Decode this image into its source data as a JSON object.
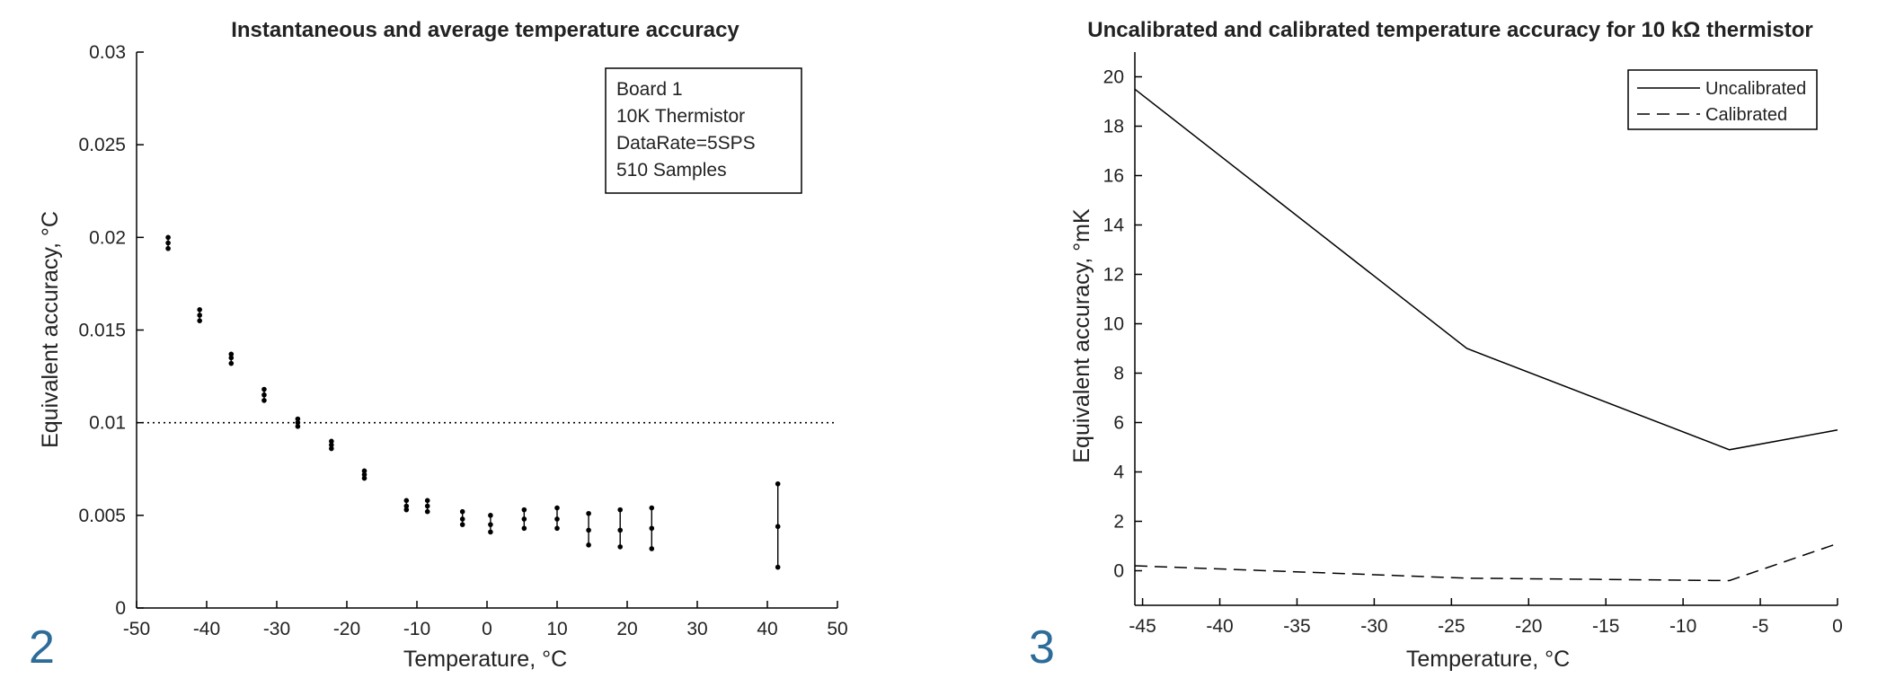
{
  "figure_numbers": [
    "2",
    "3"
  ],
  "chart_data": [
    {
      "type": "scatter",
      "title": "Instantaneous and average temperature accuracy",
      "xlabel": "Temperature, °C",
      "ylabel": "Equivalent accuracy, °C",
      "xlim": [
        -50,
        50
      ],
      "ylim": [
        0,
        0.03
      ],
      "xticks": [
        "-50",
        "-40",
        "-30",
        "-20",
        "-10",
        "0",
        "10",
        "20",
        "30",
        "40",
        "50"
      ],
      "yticks": [
        "0",
        "0.005",
        "0.01",
        "0.015",
        "0.02",
        "0.025",
        "0.03"
      ],
      "reference_line": 0.01,
      "annotation_box": [
        "Board 1",
        "10K Thermistor",
        "DataRate=5SPS",
        "510 Samples"
      ],
      "points": [
        {
          "x": -45.5,
          "low": 0.0194,
          "mid": 0.0197,
          "high": 0.02
        },
        {
          "x": -41.0,
          "low": 0.0155,
          "mid": 0.0158,
          "high": 0.0161
        },
        {
          "x": -36.5,
          "low": 0.0132,
          "mid": 0.0135,
          "high": 0.0137
        },
        {
          "x": -31.8,
          "low": 0.0112,
          "mid": 0.0115,
          "high": 0.0118
        },
        {
          "x": -27.0,
          "low": 0.0098,
          "mid": 0.01,
          "high": 0.0102
        },
        {
          "x": -22.2,
          "low": 0.0086,
          "mid": 0.0088,
          "high": 0.009
        },
        {
          "x": -17.5,
          "low": 0.007,
          "mid": 0.0072,
          "high": 0.0074
        },
        {
          "x": -11.5,
          "low": 0.0053,
          "mid": 0.0055,
          "high": 0.0058
        },
        {
          "x": -8.5,
          "low": 0.0052,
          "mid": 0.0055,
          "high": 0.0058
        },
        {
          "x": -3.5,
          "low": 0.0045,
          "mid": 0.0048,
          "high": 0.0052
        },
        {
          "x": 0.5,
          "low": 0.0041,
          "mid": 0.0045,
          "high": 0.005
        },
        {
          "x": 5.3,
          "low": 0.0043,
          "mid": 0.0048,
          "high": 0.0053
        },
        {
          "x": 10.0,
          "low": 0.0043,
          "mid": 0.0048,
          "high": 0.0054
        },
        {
          "x": 14.5,
          "low": 0.0034,
          "mid": 0.0042,
          "high": 0.0051
        },
        {
          "x": 19.0,
          "low": 0.0033,
          "mid": 0.0042,
          "high": 0.0053
        },
        {
          "x": 23.5,
          "low": 0.0032,
          "mid": 0.0043,
          "high": 0.0054
        },
        {
          "x": 41.5,
          "low": 0.0022,
          "mid": 0.0044,
          "high": 0.0067
        }
      ]
    },
    {
      "type": "line",
      "title": "Uncalibrated and calibrated temperature accuracy for 10 kΩ thermistor",
      "xlabel": "Temperature, °C",
      "ylabel": "Equivalent accuracy, °mK",
      "xlim": [
        -45.5,
        0
      ],
      "ylim": [
        -1.4,
        21
      ],
      "xticks": [
        "-45",
        "-40",
        "-35",
        "-30",
        "-25",
        "-20",
        "-15",
        "-10",
        "-5",
        "0"
      ],
      "yticks": [
        "0",
        "2",
        "4",
        "6",
        "8",
        "10",
        "12",
        "14",
        "16",
        "18",
        "20"
      ],
      "legend_position": "top-right",
      "series": [
        {
          "name": "Uncalibrated",
          "style": "solid",
          "x": [
            -45.5,
            -24.0,
            -7.0,
            0.0
          ],
          "y": [
            19.5,
            9.0,
            4.9,
            5.7
          ]
        },
        {
          "name": "Calibrated",
          "style": "dashed",
          "x": [
            -45.5,
            -24.0,
            -7.0,
            0.0
          ],
          "y": [
            0.2,
            -0.3,
            -0.4,
            1.1
          ]
        }
      ]
    }
  ]
}
